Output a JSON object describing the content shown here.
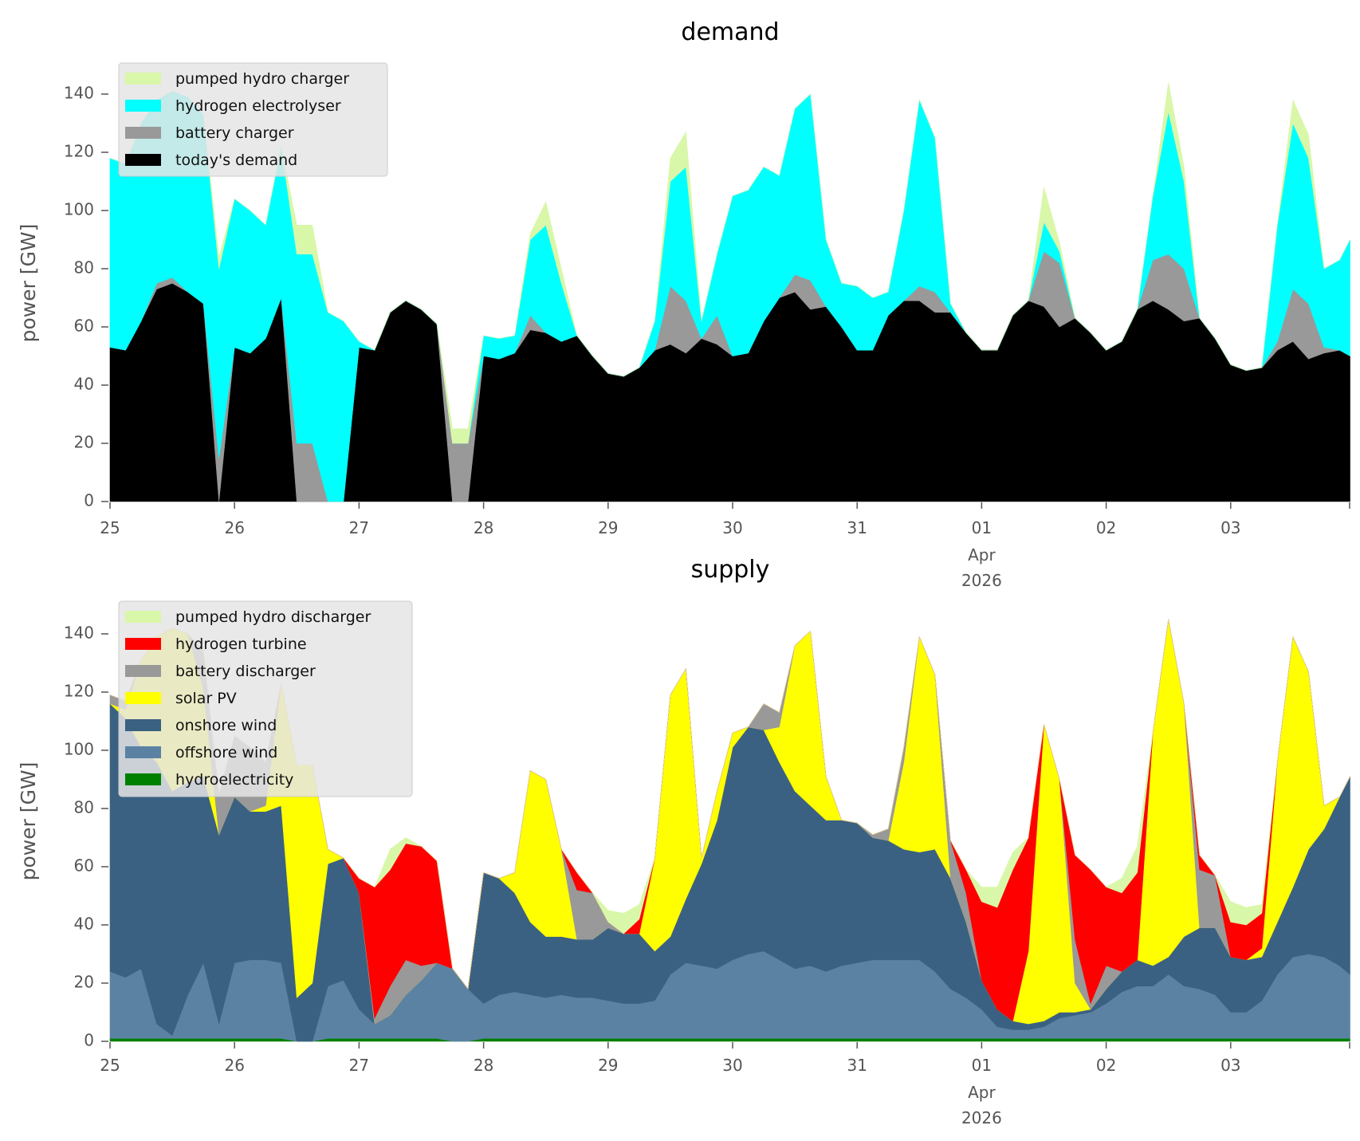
{
  "chart_data": [
    {
      "type": "area",
      "stacked": true,
      "title": "demand",
      "xlabel": "",
      "ylabel": "power [GW]",
      "ylim": [
        0,
        150
      ],
      "yticks": [
        0,
        20,
        40,
        60,
        80,
        100,
        120,
        140
      ],
      "x_start": "2026-03-25 00:00",
      "step_hours": 3,
      "xlim_hours": [
        0,
        239
      ],
      "xticks": [
        {
          "label": "25"
        },
        {
          "label": "26"
        },
        {
          "label": "27"
        },
        {
          "label": "28"
        },
        {
          "label": "29"
        },
        {
          "label": "30"
        },
        {
          "label": "31"
        },
        {
          "label": "01",
          "sub1": "Apr",
          "sub2": "2026"
        },
        {
          "label": "02"
        },
        {
          "label": "03"
        }
      ],
      "legend_position": "top-left",
      "series": [
        {
          "name": "pumped hydro charger",
          "color": "#d9f7a8",
          "values": [
            0,
            0,
            0,
            0,
            0,
            0,
            0,
            4,
            0,
            0,
            0,
            0,
            10,
            10,
            0,
            0,
            0,
            0,
            0,
            0,
            0,
            0,
            5,
            5,
            0,
            0,
            0,
            2,
            8,
            5,
            0,
            0,
            0,
            0,
            0,
            0,
            8,
            12,
            0,
            0,
            0,
            0,
            0,
            0,
            0,
            0,
            0,
            0,
            0,
            0,
            0,
            0,
            0,
            0,
            0,
            0,
            0,
            0,
            0,
            0,
            12,
            3,
            0,
            0,
            0,
            0,
            0,
            0,
            10,
            5,
            0,
            0,
            0,
            0,
            0,
            0,
            8,
            8,
            0,
            0,
            0
          ]
        },
        {
          "name": "hydrogen electrolyser",
          "color": "#00ffff",
          "values": [
            65,
            64,
            68,
            63,
            64,
            67,
            65,
            65,
            51,
            49,
            39,
            52,
            65,
            65,
            65,
            62,
            2,
            0,
            0,
            0,
            0,
            0,
            0,
            0,
            7,
            7,
            6,
            26,
            37,
            20,
            0,
            0,
            0,
            0,
            0,
            10,
            36,
            46,
            6,
            21,
            55,
            56,
            53,
            42,
            57,
            64,
            23,
            15,
            22,
            18,
            8,
            31,
            64,
            53,
            3,
            0,
            0,
            0,
            0,
            0,
            10,
            4,
            0,
            0,
            0,
            0,
            0,
            22,
            49,
            30,
            0,
            0,
            0,
            0,
            0,
            40,
            57,
            50,
            27,
            31,
            40
          ]
        },
        {
          "name": "battery charger",
          "color": "#999999",
          "values": [
            0,
            0,
            0,
            2,
            2,
            0,
            0,
            15,
            0,
            0,
            0,
            0,
            20,
            20,
            0,
            0,
            0,
            0,
            0,
            0,
            0,
            0,
            20,
            20,
            0,
            0,
            0,
            5,
            0,
            0,
            0,
            0,
            0,
            0,
            0,
            0,
            20,
            18,
            0,
            10,
            0,
            0,
            0,
            0,
            6,
            10,
            0,
            0,
            0,
            0,
            0,
            0,
            5,
            7,
            0,
            0,
            0,
            0,
            0,
            0,
            19,
            22,
            0,
            0,
            0,
            0,
            0,
            14,
            19,
            18,
            0,
            0,
            0,
            0,
            0,
            3,
            18,
            19,
            2,
            0,
            0
          ]
        },
        {
          "name": "today's demand",
          "color": "#000000",
          "values": [
            53,
            52,
            62,
            73,
            75,
            72,
            68,
            0,
            53,
            51,
            56,
            70,
            0,
            0,
            0,
            0,
            53,
            52,
            65,
            69,
            66,
            61,
            0,
            0,
            50,
            49,
            51,
            59,
            58,
            55,
            57,
            50,
            44,
            43,
            46,
            52,
            54,
            51,
            56,
            54,
            50,
            51,
            62,
            70,
            72,
            66,
            67,
            60,
            52,
            52,
            64,
            69,
            69,
            65,
            65,
            58,
            52,
            52,
            64,
            69,
            67,
            60,
            63,
            58,
            52,
            55,
            66,
            69,
            66,
            62,
            63,
            56,
            47,
            45,
            46,
            52,
            55,
            49,
            51,
            52,
            50
          ]
        }
      ]
    },
    {
      "type": "area",
      "stacked": true,
      "title": "supply",
      "xlabel": "",
      "ylabel": "power [GW]",
      "ylim": [
        0,
        150
      ],
      "yticks": [
        0,
        20,
        40,
        60,
        80,
        100,
        120,
        140
      ],
      "x_start": "2026-03-25 00:00",
      "step_hours": 3,
      "xlim_hours": [
        0,
        239
      ],
      "xticks": [
        {
          "label": "25"
        },
        {
          "label": "26"
        },
        {
          "label": "27"
        },
        {
          "label": "28"
        },
        {
          "label": "29"
        },
        {
          "label": "30"
        },
        {
          "label": "31"
        },
        {
          "label": "01",
          "sub1": "Apr",
          "sub2": "2026"
        },
        {
          "label": "02"
        },
        {
          "label": "03"
        }
      ],
      "legend_position": "top-left",
      "series": [
        {
          "name": "pumped hydro discharger",
          "color": "#d9f7a8",
          "values": [
            0,
            0,
            0,
            0,
            0,
            0,
            0,
            0,
            0,
            0,
            0,
            0,
            0,
            0,
            0,
            0,
            0,
            0,
            7,
            2,
            0,
            0,
            0,
            0,
            0,
            0,
            0,
            0,
            0,
            0,
            0,
            0,
            4,
            7,
            5,
            0,
            0,
            0,
            0,
            0,
            0,
            0,
            0,
            0,
            0,
            0,
            0,
            0,
            0,
            0,
            0,
            0,
            0,
            0,
            0,
            0,
            5,
            7,
            6,
            0,
            0,
            0,
            0,
            0,
            0,
            5,
            9,
            0,
            0,
            0,
            0,
            0,
            7,
            6,
            3,
            0,
            0,
            0,
            0,
            0,
            0
          ]
        },
        {
          "name": "hydrogen turbine",
          "color": "#ff0000",
          "values": [
            0,
            0,
            0,
            0,
            0,
            0,
            0,
            0,
            0,
            0,
            0,
            0,
            0,
            0,
            0,
            0,
            5,
            45,
            40,
            40,
            41,
            35,
            0,
            0,
            0,
            0,
            0,
            0,
            0,
            0,
            6,
            0,
            0,
            0,
            5,
            0,
            0,
            0,
            0,
            0,
            0,
            0,
            0,
            0,
            0,
            0,
            0,
            0,
            0,
            0,
            0,
            0,
            0,
            0,
            0,
            8,
            27,
            35,
            52,
            39,
            0,
            0,
            29,
            46,
            27,
            27,
            30,
            0,
            0,
            0,
            5,
            0,
            12,
            12,
            12,
            0,
            0,
            0,
            0,
            0,
            0
          ]
        },
        {
          "name": "battery discharger",
          "color": "#999999",
          "values": [
            3,
            3,
            0,
            0,
            0,
            0,
            13,
            14,
            21,
            22,
            15,
            0,
            0,
            0,
            0,
            0,
            0,
            2,
            10,
            12,
            5,
            0,
            0,
            0,
            0,
            0,
            0,
            0,
            0,
            0,
            17,
            16,
            2,
            0,
            0,
            0,
            0,
            0,
            0,
            0,
            0,
            0,
            9,
            5,
            0,
            0,
            0,
            0,
            0,
            1,
            4,
            5,
            0,
            0,
            13,
            10,
            0,
            0,
            0,
            0,
            0,
            0,
            15,
            2,
            8,
            0,
            0,
            0,
            0,
            0,
            20,
            18,
            0,
            0,
            0,
            0,
            0,
            0,
            0,
            0,
            0
          ]
        },
        {
          "name": "solar PV",
          "color": "#ffff00",
          "values": [
            0,
            3,
            30,
            43,
            56,
            51,
            30,
            0,
            0,
            0,
            2,
            42,
            80,
            75,
            5,
            0,
            0,
            0,
            0,
            0,
            0,
            0,
            0,
            0,
            0,
            0,
            7,
            52,
            54,
            30,
            0,
            0,
            0,
            0,
            0,
            32,
            83,
            79,
            2,
            10,
            5,
            0,
            0,
            12,
            50,
            60,
            15,
            0,
            0,
            0,
            0,
            30,
            74,
            60,
            0,
            0,
            0,
            0,
            0,
            25,
            102,
            80,
            10,
            0,
            0,
            0,
            0,
            80,
            116,
            80,
            0,
            0,
            0,
            0,
            3,
            55,
            86,
            61,
            8,
            0,
            0
          ]
        },
        {
          "name": "onshore wind",
          "color": "#3b6182",
          "values": [
            92,
            89,
            76,
            90,
            84,
            73,
            64,
            65,
            57,
            51,
            51,
            54,
            15,
            20,
            42,
            42,
            40,
            0,
            0,
            0,
            0,
            0,
            0,
            0,
            45,
            40,
            34,
            25,
            21,
            20,
            20,
            20,
            25,
            24,
            24,
            17,
            13,
            22,
            35,
            51,
            73,
            78,
            76,
            68,
            61,
            55,
            52,
            50,
            48,
            42,
            41,
            38,
            37,
            42,
            38,
            26,
            10,
            6,
            3,
            2,
            2,
            2,
            1,
            1,
            5,
            7,
            9,
            7,
            6,
            17,
            21,
            23,
            19,
            18,
            15,
            18,
            24,
            36,
            44,
            58,
            68
          ]
        },
        {
          "name": "offshore wind",
          "color": "#5b82a3",
          "values": [
            23,
            21,
            24,
            5,
            1,
            15,
            26,
            5,
            26,
            27,
            27,
            26,
            0,
            0,
            18,
            20,
            10,
            5,
            8,
            15,
            20,
            26,
            25,
            18,
            12,
            15,
            16,
            15,
            14,
            15,
            14,
            14,
            13,
            12,
            12,
            13,
            22,
            26,
            25,
            24,
            27,
            29,
            30,
            27,
            24,
            25,
            23,
            25,
            26,
            27,
            27,
            27,
            27,
            23,
            17,
            14,
            10,
            4,
            3,
            3,
            4,
            7,
            8,
            9,
            12,
            16,
            18,
            18,
            22,
            18,
            17,
            15,
            9,
            9,
            13,
            22,
            28,
            29,
            28,
            25,
            22
          ]
        },
        {
          "name": "hydroelectricity",
          "color": "#008000",
          "values": [
            1,
            1,
            1,
            1,
            1,
            1,
            1,
            1,
            1,
            1,
            1,
            1,
            0,
            0,
            1,
            1,
            1,
            1,
            1,
            1,
            1,
            1,
            0,
            0,
            1,
            1,
            1,
            1,
            1,
            1,
            1,
            1,
            1,
            1,
            1,
            1,
            1,
            1,
            1,
            1,
            1,
            1,
            1,
            1,
            1,
            1,
            1,
            1,
            1,
            1,
            1,
            1,
            1,
            1,
            1,
            1,
            1,
            1,
            1,
            1,
            1,
            1,
            1,
            1,
            1,
            1,
            1,
            1,
            1,
            1,
            1,
            1,
            1,
            1,
            1,
            1,
            1,
            1,
            1,
            1,
            1
          ]
        }
      ]
    }
  ]
}
